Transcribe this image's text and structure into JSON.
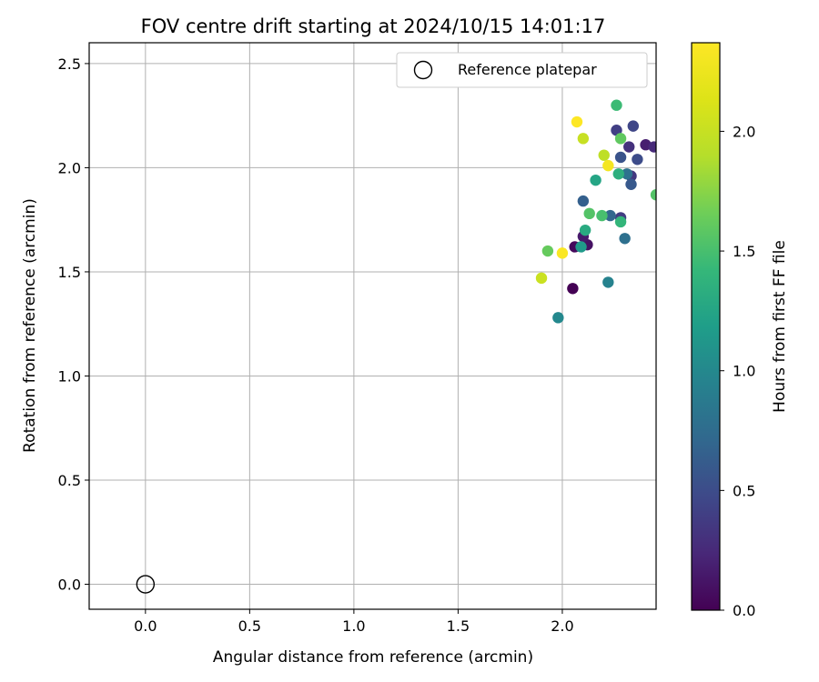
{
  "chart_data": {
    "type": "scatter",
    "title": "FOV centre drift starting at 2024/10/15 14:01:17",
    "xlabel": "Angular distance from reference (arcmin)",
    "ylabel": "Rotation from reference (arcmin)",
    "xlim": [
      -0.27,
      2.45
    ],
    "ylim": [
      -0.12,
      2.6
    ],
    "xticks": [
      "0.0",
      "0.5",
      "1.0",
      "1.5",
      "2.0"
    ],
    "xtick_values": [
      0,
      0.5,
      1.0,
      1.5,
      2.0
    ],
    "yticks": [
      "0.0",
      "0.5",
      "1.0",
      "1.5",
      "2.0",
      "2.5"
    ],
    "ytick_values": [
      0,
      0.5,
      1.0,
      1.5,
      2.0,
      2.5
    ],
    "grid": true,
    "legend": {
      "placement": "top-right",
      "label": "Reference platepar"
    },
    "reference_point": {
      "x": 0.0,
      "y": 0.0,
      "marker": "open-circle"
    },
    "colorbar": {
      "label": "Hours from first FF file",
      "colormap": "viridis",
      "range": [
        0.0,
        2.37
      ],
      "ticks": [
        "0.0",
        "0.5",
        "1.0",
        "1.5",
        "2.0"
      ],
      "tick_values": [
        0,
        0.5,
        1.0,
        1.5,
        2.0
      ]
    },
    "points": [
      {
        "x": 2.05,
        "y": 1.42,
        "c": 0.0
      },
      {
        "x": 2.06,
        "y": 1.62,
        "c": 0.05
      },
      {
        "x": 2.12,
        "y": 1.63,
        "c": 0.1
      },
      {
        "x": 2.1,
        "y": 1.67,
        "c": 0.15
      },
      {
        "x": 2.4,
        "y": 2.11,
        "c": 0.18
      },
      {
        "x": 2.44,
        "y": 2.1,
        "c": 0.25
      },
      {
        "x": 2.32,
        "y": 2.1,
        "c": 0.3
      },
      {
        "x": 2.33,
        "y": 1.96,
        "c": 0.35
      },
      {
        "x": 2.28,
        "y": 1.76,
        "c": 0.38
      },
      {
        "x": 2.26,
        "y": 2.18,
        "c": 0.4
      },
      {
        "x": 2.34,
        "y": 2.2,
        "c": 0.45
      },
      {
        "x": 2.36,
        "y": 2.04,
        "c": 0.5
      },
      {
        "x": 2.28,
        "y": 2.05,
        "c": 0.55
      },
      {
        "x": 2.33,
        "y": 1.92,
        "c": 0.6
      },
      {
        "x": 2.1,
        "y": 1.84,
        "c": 0.65
      },
      {
        "x": 2.23,
        "y": 1.77,
        "c": 0.7
      },
      {
        "x": 2.3,
        "y": 1.66,
        "c": 0.78
      },
      {
        "x": 2.31,
        "y": 1.97,
        "c": 0.8
      },
      {
        "x": 2.22,
        "y": 1.45,
        "c": 0.95
      },
      {
        "x": 1.98,
        "y": 1.28,
        "c": 1.0
      },
      {
        "x": 2.09,
        "y": 1.62,
        "c": 1.15
      },
      {
        "x": 2.16,
        "y": 1.94,
        "c": 1.25
      },
      {
        "x": 2.11,
        "y": 1.7,
        "c": 1.3
      },
      {
        "x": 2.27,
        "y": 1.97,
        "c": 1.35
      },
      {
        "x": 2.28,
        "y": 1.74,
        "c": 1.4
      },
      {
        "x": 2.26,
        "y": 2.3,
        "c": 1.45
      },
      {
        "x": 2.19,
        "y": 1.77,
        "c": 1.5
      },
      {
        "x": 2.13,
        "y": 1.78,
        "c": 1.55
      },
      {
        "x": 2.28,
        "y": 2.14,
        "c": 1.6
      },
      {
        "x": 1.93,
        "y": 1.6,
        "c": 1.62
      },
      {
        "x": 2.45,
        "y": 1.87,
        "c": 1.55
      },
      {
        "x": 2.2,
        "y": 2.06,
        "c": 1.95
      },
      {
        "x": 2.1,
        "y": 2.14,
        "c": 2.0
      },
      {
        "x": 1.9,
        "y": 1.47,
        "c": 2.02
      },
      {
        "x": 2.22,
        "y": 2.01,
        "c": 2.3
      },
      {
        "x": 2.0,
        "y": 1.59,
        "c": 2.35
      },
      {
        "x": 2.07,
        "y": 2.22,
        "c": 2.37
      }
    ]
  }
}
